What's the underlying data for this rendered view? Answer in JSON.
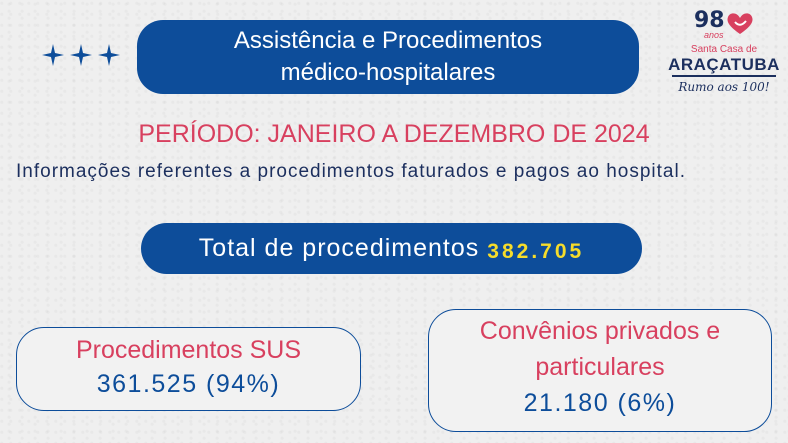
{
  "header": {
    "title_line1": "Assistência e Procedimentos",
    "title_line2": "médico-hospitalares"
  },
  "logo": {
    "number": "98",
    "anos": "anos",
    "subtitle": "Santa Casa de",
    "city": "ARAÇATUBA",
    "slogan": "Rumo aos 100!"
  },
  "period": "PERÍODO: JANEIRO A DEZEMBRO DE 2024",
  "info": "Informações referentes a procedimentos faturados e pagos ao hospital.",
  "total": {
    "label": "Total de procedimentos",
    "value": "382.705"
  },
  "cards": {
    "sus": {
      "label": "Procedimentos SUS",
      "value": "361.525 (94%)"
    },
    "conv": {
      "label_line1": "Convênios privados e",
      "label_line2": "particulares",
      "value": "21.180 (6%)"
    }
  },
  "colors": {
    "primary_blue": "#0d4d9a",
    "accent_pink": "#d8405f",
    "highlight_yellow": "#f5dc2b",
    "text_navy": "#1c2f5e"
  }
}
